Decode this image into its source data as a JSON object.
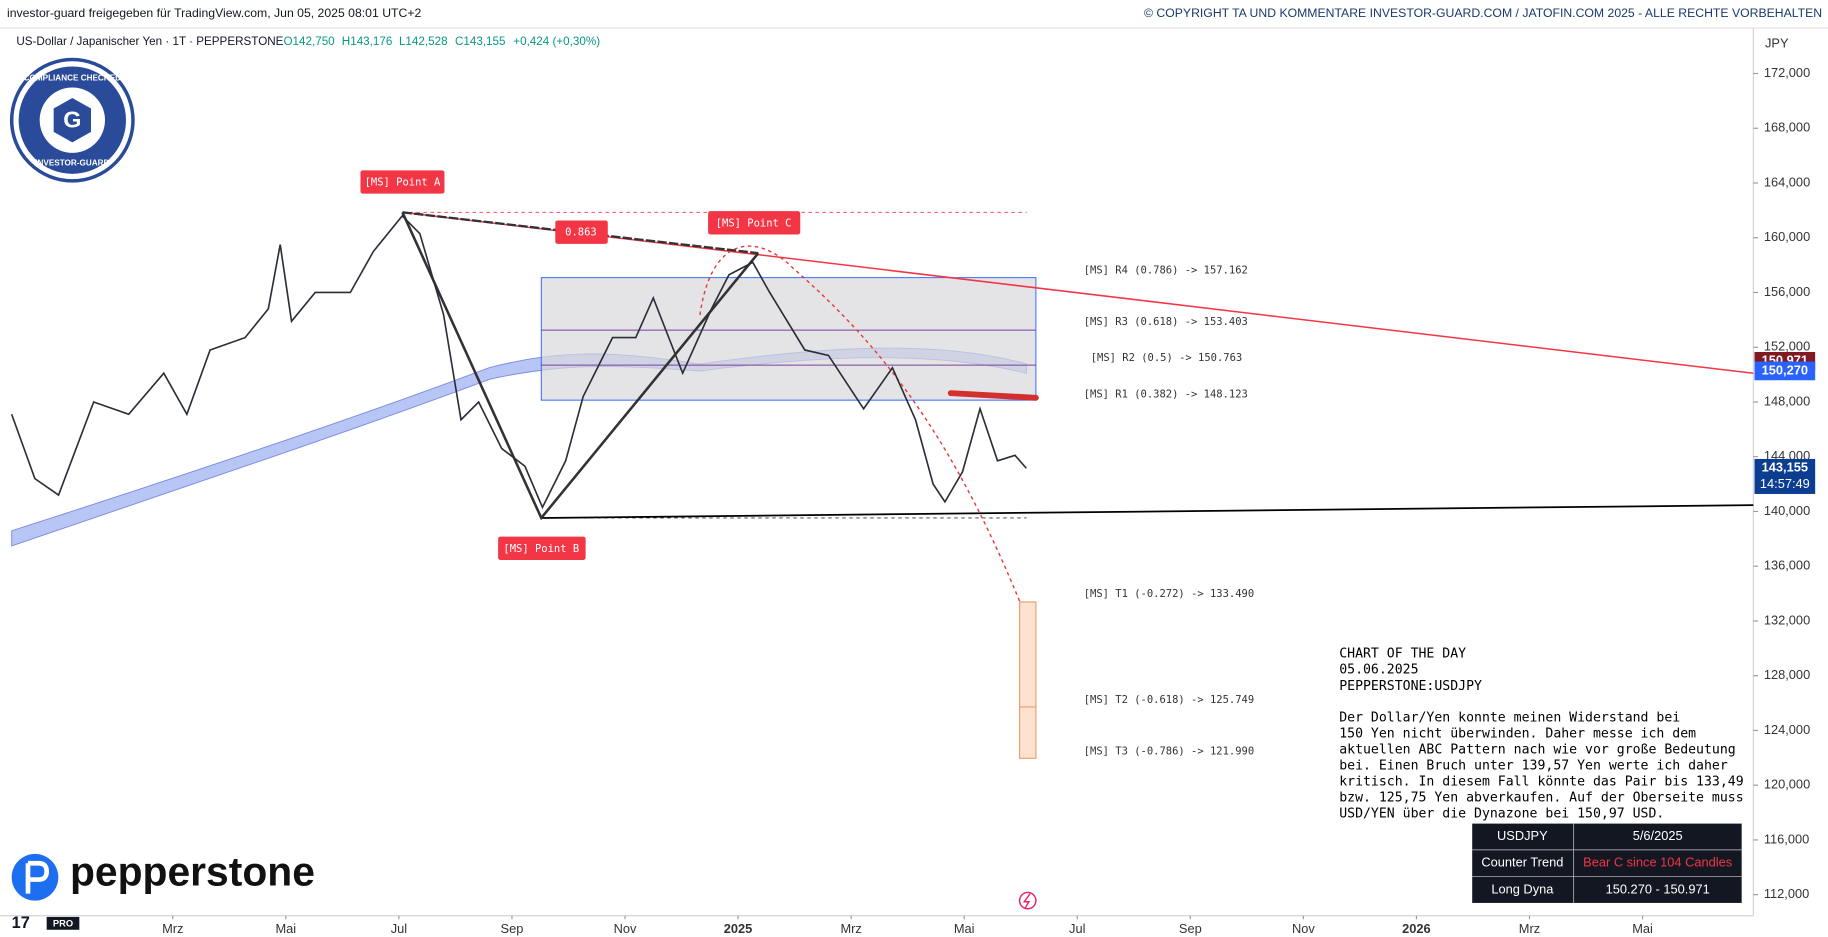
{
  "header": {
    "left": "investor-guard freigegeben für TradingView.com, Jun 05, 2025 08:01 UTC+2",
    "right": "© COPYRIGHT TA UND KOMMENTARE INVESTOR-GUARD.COM / JATOFIN.COM 2025 - ALLE RECHTE VORBEHALTEN"
  },
  "symbol_line": {
    "name": "US-Dollar / Japanischer Yen · 1T · PEPPERSTONE",
    "open": "O142,750",
    "high": "H143,176",
    "low": "L142,528",
    "close": "C143,155",
    "change": "+0,424 (+0,30%)"
  },
  "badge": {
    "top": "COMPLIANCE CHECKED",
    "bottom": "INVESTOR-GUARD",
    "letter": "G"
  },
  "brand": "pepperstone",
  "tv_badge": "PRO",
  "chart_data": {
    "type": "line",
    "axis_unit": "JPY",
    "color": "#2a2e39",
    "x": [
      -0.85,
      -0.44,
      -0.02,
      0.6,
      1.22,
      1.84,
      2.25,
      2.66,
      3.28,
      3.69,
      3.9,
      4.1,
      4.52,
      5.14,
      5.55,
      6.06,
      6.37,
      6.79,
      7.1,
      7.41,
      7.82,
      8.23,
      8.54,
      8.95,
      9.26,
      9.78,
      10.19,
      10.5,
      11.02,
      11.53,
      11.84,
      12.26,
      12.56,
      13.18,
      13.6,
      14.22,
      14.73,
      15.14,
      15.45,
      15.66,
      15.97,
      16.28,
      16.59,
      16.9,
      17.1
    ],
    "values": [
      147.1,
      142.4,
      141.2,
      148,
      147.1,
      150.1,
      147.1,
      151.8,
      152.7,
      154.8,
      159.5,
      153.9,
      156,
      156,
      159,
      161.6,
      160.3,
      154.4,
      146.7,
      148,
      144.6,
      143.3,
      140.3,
      143.7,
      148.4,
      152.7,
      152.7,
      155.6,
      150.1,
      154.8,
      157.3,
      158.2,
      156,
      151.8,
      151.4,
      147.5,
      150.5,
      146.7,
      142,
      140.7,
      142.9,
      147.5,
      143.7,
      144.1,
      143.155
    ],
    "xlim": [
      -0.85,
      29.96
    ],
    "ylim": [
      110.46,
      175.24
    ],
    "xticks": [
      {
        "value": 2,
        "label": "Mrz"
      },
      {
        "value": 4,
        "label": "Mai"
      },
      {
        "value": 6,
        "label": "Jul"
      },
      {
        "value": 8,
        "label": "Sep"
      },
      {
        "value": 10,
        "label": "Nov"
      },
      {
        "value": 12,
        "label": "2025"
      },
      {
        "value": 14,
        "label": "Mrz"
      },
      {
        "value": 16,
        "label": "Mai"
      },
      {
        "value": 18,
        "label": "Jul"
      },
      {
        "value": 20,
        "label": "Sep"
      },
      {
        "value": 22,
        "label": "Nov"
      },
      {
        "value": 24,
        "label": "2026"
      },
      {
        "value": 26,
        "label": "Mrz"
      },
      {
        "value": 28,
        "label": "Mai"
      }
    ],
    "yticks": [
      {
        "value": 112,
        "label": "112,000"
      },
      {
        "value": 116,
        "label": "116,000"
      },
      {
        "value": 120,
        "label": "120,000"
      },
      {
        "value": 124,
        "label": "124,000"
      },
      {
        "value": 128,
        "label": "128,000"
      },
      {
        "value": 132,
        "label": "132,000"
      },
      {
        "value": 136,
        "label": "136,000"
      },
      {
        "value": 140,
        "label": "140,000"
      },
      {
        "value": 144,
        "label": "144,000"
      },
      {
        "value": 148,
        "label": "148,000"
      },
      {
        "value": 152,
        "label": "152,000"
      },
      {
        "value": 156,
        "label": "156,000"
      },
      {
        "value": 160,
        "label": "160,000"
      },
      {
        "value": 164,
        "label": "164,000"
      },
      {
        "value": 168,
        "label": "168,000"
      },
      {
        "value": 172,
        "label": "172,000"
      }
    ],
    "price_tags": [
      {
        "value": 150.971,
        "label": "150,971",
        "color": "#801922"
      },
      {
        "value": 150.27,
        "label": "150,270",
        "color": "#2962ff"
      },
      {
        "value": 143.155,
        "label": "143,155",
        "color": "#0b3d91"
      }
    ],
    "countdown": "14:57:49"
  },
  "annotations": {
    "point_a": "[MS] Point A",
    "point_b": "[MS] Point  B",
    "point_c": "[MS]  Point  C",
    "ratio": "0.863"
  },
  "levels": {
    "r4": "[MS] R4 (0.786) -> 157.162",
    "r3": "[MS] R3 (0.618) -> 153.403",
    "r2": "[MS] R2 (0.5) -> 150.763",
    "r1": "[MS] R1 (0.382) -> 148.123",
    "t1": "[MS] T1 (-0.272) -> 133.490",
    "t2": "[MS] T2 (-0.618) -> 125.749",
    "t3": "[MS] T3 (-0.786) -> 121.990"
  },
  "commentary": {
    "title": "CHART OF THE DAY",
    "date": "05.06.2025",
    "symbol": "PEPPERSTONE:USDJPY",
    "lines": [
      "Der Dollar/Yen konnte meinen Widerstand bei",
      "150 Yen nicht überwinden. Daher messe ich dem",
      "aktuellen ABC Pattern nach wie vor große Bedeutung",
      "bei. Einen Bruch unter 139,57 Yen werte ich daher",
      "kritisch. In diesem Fall könnte das Pair bis 133,49",
      "bzw. 125,75 Yen abverkaufen. Auf der Oberseite muss",
      "USD/YEN über die Dynazone bei 150,97 USD."
    ]
  },
  "table": {
    "rows": [
      [
        "USDJPY",
        "5/6/2025"
      ],
      [
        "Counter Trend",
        "Bear C since 104 Candles"
      ],
      [
        "Long Dyna",
        "150.270 - 150.971"
      ]
    ]
  }
}
